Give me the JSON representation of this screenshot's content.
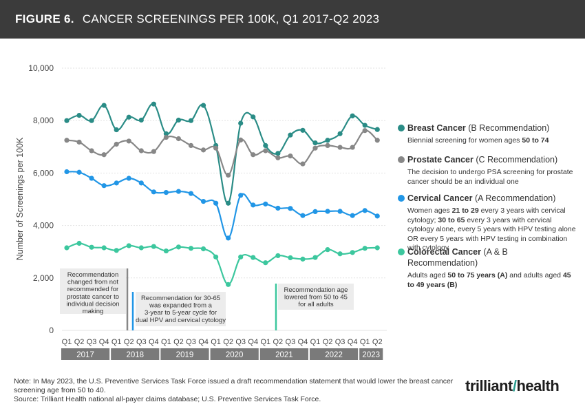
{
  "header": {
    "figure": "FIGURE 6.",
    "title": "CANCER SCREENINGS PER 100K, Q1 2017-Q2 2023"
  },
  "chart_data": {
    "type": "line",
    "ylabel": "Number of Screenings per 100K",
    "ylim": [
      0,
      10000
    ],
    "yticks": [
      0,
      2000,
      4000,
      6000,
      8000,
      10000
    ],
    "ytick_labels": [
      "0",
      "2,000",
      "4,000",
      "6,000",
      "8,000",
      "10,000"
    ],
    "quarters": [
      "Q1",
      "Q2",
      "Q3",
      "Q4",
      "Q1",
      "Q2",
      "Q3",
      "Q4",
      "Q1",
      "Q2",
      "Q3",
      "Q4",
      "Q1",
      "Q2",
      "Q3",
      "Q4",
      "Q1",
      "Q2",
      "Q3",
      "Q4",
      "Q1",
      "Q2",
      "Q3",
      "Q4",
      "Q1",
      "Q2"
    ],
    "years": [
      {
        "label": "2017",
        "start": 0,
        "end": 3
      },
      {
        "label": "2018",
        "start": 4,
        "end": 7
      },
      {
        "label": "2019",
        "start": 8,
        "end": 11
      },
      {
        "label": "2020",
        "start": 12,
        "end": 15
      },
      {
        "label": "2021",
        "start": 16,
        "end": 19
      },
      {
        "label": "2022",
        "start": 20,
        "end": 23
      },
      {
        "label": "2023",
        "start": 24,
        "end": 25
      }
    ],
    "series": [
      {
        "name": "Breast Cancer",
        "color": "#2a8c86",
        "values": [
          8000,
          8200,
          8000,
          8580,
          7650,
          8130,
          8020,
          8630,
          7500,
          8020,
          8000,
          8580,
          7050,
          4850,
          7900,
          8140,
          7050,
          6750,
          7450,
          7630,
          7150,
          7250,
          7500,
          8180,
          7820,
          7660
        ]
      },
      {
        "name": "Prostate Cancer",
        "color": "#878787",
        "values": [
          7250,
          7180,
          6850,
          6700,
          7100,
          7220,
          6850,
          6820,
          7360,
          7310,
          7050,
          6880,
          6950,
          5920,
          7260,
          6700,
          6850,
          6580,
          6650,
          6350,
          6950,
          7050,
          6980,
          6980,
          7620,
          7250
        ]
      },
      {
        "name": "Cervical Cancer",
        "color": "#2196e6",
        "values": [
          6050,
          6030,
          5800,
          5520,
          5620,
          5800,
          5620,
          5280,
          5260,
          5300,
          5220,
          4920,
          4850,
          3520,
          5150,
          4780,
          4820,
          4660,
          4650,
          4380,
          4530,
          4540,
          4540,
          4380,
          4570,
          4360
        ]
      },
      {
        "name": "Colorectal Cancer",
        "color": "#3cc79e",
        "values": [
          3150,
          3320,
          3170,
          3150,
          3050,
          3230,
          3150,
          3200,
          3030,
          3180,
          3130,
          3110,
          2800,
          1750,
          2800,
          2780,
          2580,
          2850,
          2770,
          2720,
          2780,
          3080,
          2920,
          2970,
          3130,
          3150
        ]
      }
    ],
    "annotations": [
      {
        "text": "Recommendation changed from not recommended for prostate cancer to individual decision making",
        "quarter_index": 5,
        "color": "#878787"
      },
      {
        "text": "Recommendation for 30-65 was expanded from a 3-year to 5-year cycle for dual HPV and cervical cytology",
        "quarter_index": 6,
        "color": "#2196e6"
      },
      {
        "text": "Recommendation age lowered from 50 to 45 for all adults",
        "quarter_index": 17,
        "color": "#3cc79e"
      }
    ]
  },
  "legend": [
    {
      "name": "Breast Cancer",
      "grade": " (B Recommendation)",
      "color": "#2a8c86",
      "desc": "Biennial screening for women ages <b>50 to 74</b>"
    },
    {
      "name": "Prostate Cancer",
      "grade": " (C Recommendation)",
      "color": "#878787",
      "desc": "The decision to undergo PSA screening for prostate cancer should be an individual one"
    },
    {
      "name": "Cervical Cancer",
      "grade": " (A Recommendation)",
      "color": "#2196e6",
      "desc": "Women ages <b>21 to 29</b> every 3 years with cervical cytology; <b>30 to 65</b> every 3 years with cervical cytology alone, every 5 years with HPV testing alone OR every 5 years with HPV testing in combination with cytology"
    },
    {
      "name": "Colorectal Cancer",
      "grade": " (A & B Recommendation)",
      "color": "#3cc79e",
      "desc": "Adults aged <b>50 to 75 years (A)</b> and adults aged <b>45 to 49 years (B)</b>"
    }
  ],
  "footer": {
    "note": "Note: In May 2023, the U.S. Preventive Services Task Force issued a draft recommendation statement that would lower the breast cancer screening age from 50 to 40.",
    "source": "Source: Trilliant Health national all-payer claims database; U.S. Preventive Services Task Force.",
    "logo_left": "trilliant",
    "logo_right": "health"
  }
}
